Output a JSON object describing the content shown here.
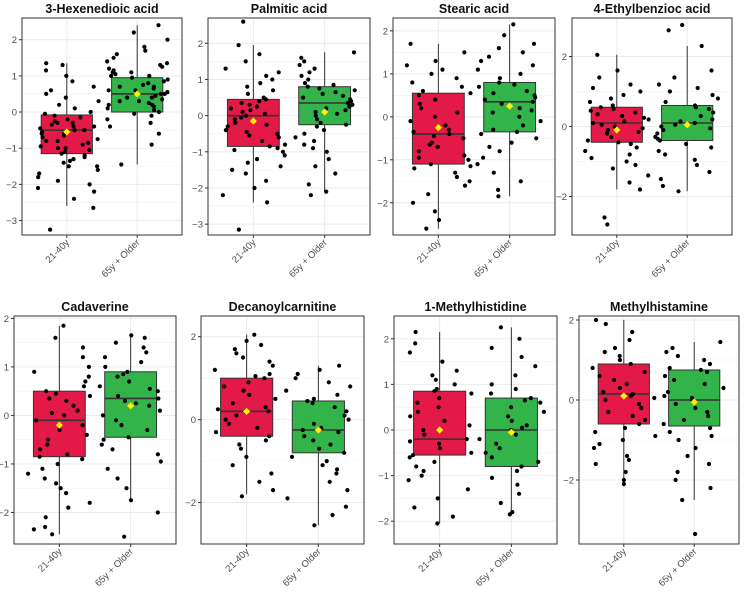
{
  "figure": {
    "colors": {
      "young": "#e31a47",
      "old": "#33b44a",
      "mean": "#ffee00",
      "point": "#000000",
      "grid": "#ebebeb"
    }
  },
  "chart_data": [
    {
      "type": "box",
      "title": "3-Hexenedioic acid",
      "categories": [
        "21-40y",
        "65y + Older"
      ],
      "yticks": [
        -3,
        -2,
        -1,
        0,
        1,
        2
      ],
      "ylim": [
        -3.4,
        2.6
      ],
      "groups": [
        {
          "name": "21-40y",
          "q1": -1.15,
          "median": -0.5,
          "q3": -0.08,
          "whisker_low": -2.6,
          "whisker_high": 1.35,
          "mean": -0.55,
          "points": [
            -3.25,
            -2.65,
            -2.4,
            -2.2,
            -2.1,
            -2.0,
            -1.9,
            -1.8,
            -1.7,
            -1.6,
            -1.5,
            -1.5,
            -1.4,
            -1.35,
            -1.3,
            -1.25,
            -1.2,
            -1.15,
            -1.1,
            -1.05,
            -1.0,
            -1.0,
            -0.95,
            -0.9,
            -0.85,
            -0.8,
            -0.8,
            -0.75,
            -0.7,
            -0.65,
            -0.6,
            -0.6,
            -0.55,
            -0.5,
            -0.5,
            -0.45,
            -0.4,
            -0.4,
            -0.35,
            -0.3,
            -0.3,
            -0.25,
            -0.2,
            -0.15,
            -0.1,
            -0.05,
            0.0,
            0.1,
            0.2,
            0.3,
            0.4,
            0.5,
            0.6,
            0.7,
            0.85,
            1.0,
            1.15,
            1.3,
            1.35
          ]
        },
        {
          "name": "65y + Older",
          "q1": 0.0,
          "median": 0.5,
          "q3": 0.95,
          "whisker_low": -1.45,
          "whisker_high": 2.4,
          "mean": 0.5,
          "points": [
            -1.45,
            -0.9,
            -0.6,
            -0.4,
            -0.3,
            -0.2,
            -0.1,
            -0.05,
            0.0,
            0.05,
            0.1,
            0.15,
            0.2,
            0.2,
            0.25,
            0.3,
            0.3,
            0.35,
            0.4,
            0.4,
            0.45,
            0.5,
            0.5,
            0.55,
            0.6,
            0.6,
            0.65,
            0.7,
            0.7,
            0.75,
            0.8,
            0.85,
            0.9,
            0.95,
            1.0,
            1.0,
            1.05,
            1.1,
            1.1,
            1.15,
            1.2,
            1.25,
            1.3,
            1.35,
            1.4,
            1.5,
            1.6,
            1.7,
            1.8,
            2.0,
            2.2,
            2.4
          ]
        }
      ]
    },
    {
      "type": "box",
      "title": "Palmitic acid",
      "categories": [
        "21-40y",
        "65y + Older"
      ],
      "yticks": [
        -3,
        -2,
        -1,
        0,
        1,
        2
      ],
      "ylim": [
        -3.3,
        2.7
      ],
      "groups": [
        {
          "name": "21-40y",
          "q1": -0.85,
          "median": 0.0,
          "q3": 0.45,
          "whisker_low": -2.4,
          "whisker_high": 1.95,
          "mean": -0.15,
          "points": [
            -3.15,
            -2.4,
            -2.2,
            -2.0,
            -1.8,
            -1.6,
            -1.5,
            -1.4,
            -1.3,
            -1.2,
            -1.1,
            -1.0,
            -0.95,
            -0.9,
            -0.85,
            -0.8,
            -0.7,
            -0.6,
            -0.55,
            -0.5,
            -0.45,
            -0.4,
            -0.3,
            -0.25,
            -0.2,
            -0.1,
            -0.05,
            0.0,
            0.05,
            0.1,
            0.15,
            0.2,
            0.25,
            0.3,
            0.35,
            0.4,
            0.45,
            0.5,
            0.6,
            0.7,
            0.8,
            0.9,
            1.0,
            1.1,
            1.2,
            1.3,
            1.5,
            1.7,
            1.95,
            2.6
          ]
        },
        {
          "name": "65y + Older",
          "q1": -0.25,
          "median": 0.35,
          "q3": 0.8,
          "whisker_low": -2.1,
          "whisker_high": 1.75,
          "mean": 0.1,
          "points": [
            -2.2,
            -2.1,
            -1.9,
            -1.6,
            -1.4,
            -1.2,
            -1.0,
            -0.9,
            -0.8,
            -0.7,
            -0.6,
            -0.5,
            -0.4,
            -0.3,
            -0.25,
            -0.2,
            -0.1,
            0.0,
            0.05,
            0.1,
            0.15,
            0.2,
            0.25,
            0.3,
            0.35,
            0.4,
            0.45,
            0.5,
            0.55,
            0.6,
            0.65,
            0.7,
            0.75,
            0.8,
            0.85,
            0.9,
            1.0,
            1.1,
            1.2,
            1.3,
            1.4,
            1.5,
            1.6,
            1.75
          ]
        }
      ]
    },
    {
      "type": "box",
      "title": "Stearic acid",
      "categories": [
        "21-40y",
        "65y + Older"
      ],
      "yticks": [
        -2,
        -1,
        0,
        1,
        2
      ],
      "ylim": [
        -2.75,
        2.3
      ],
      "groups": [
        {
          "name": "21-40y",
          "q1": -1.1,
          "median": -0.4,
          "q3": 0.55,
          "whisker_low": -2.6,
          "whisker_high": 1.7,
          "mean": -0.25,
          "points": [
            -2.6,
            -2.4,
            -2.2,
            -2.0,
            -1.8,
            -1.6,
            -1.5,
            -1.4,
            -1.3,
            -1.2,
            -1.15,
            -1.1,
            -1.0,
            -0.95,
            -0.9,
            -0.8,
            -0.7,
            -0.65,
            -0.6,
            -0.5,
            -0.45,
            -0.4,
            -0.35,
            -0.3,
            -0.2,
            -0.1,
            0.0,
            0.1,
            0.2,
            0.3,
            0.4,
            0.5,
            0.55,
            0.6,
            0.7,
            0.8,
            0.9,
            1.0,
            1.1,
            1.2,
            1.3,
            1.5,
            1.7
          ]
        },
        {
          "name": "65y + Older",
          "q1": -0.35,
          "median": 0.35,
          "q3": 0.8,
          "whisker_low": -1.85,
          "whisker_high": 2.15,
          "mean": 0.25,
          "points": [
            -1.85,
            -1.7,
            -1.5,
            -1.3,
            -1.1,
            -0.95,
            -0.8,
            -0.7,
            -0.6,
            -0.5,
            -0.4,
            -0.35,
            -0.3,
            -0.2,
            -0.1,
            0.0,
            0.1,
            0.15,
            0.2,
            0.3,
            0.35,
            0.4,
            0.45,
            0.5,
            0.55,
            0.6,
            0.7,
            0.75,
            0.8,
            0.9,
            1.0,
            1.1,
            1.2,
            1.3,
            1.4,
            1.5,
            1.6,
            1.7,
            1.9,
            2.15
          ]
        }
      ]
    },
    {
      "type": "box",
      "title": "4-Ethylbenzioc acid",
      "categories": [
        "21-40y",
        "65y + Older"
      ],
      "yticks": [
        -2,
        0,
        2
      ],
      "ylim": [
        -3.1,
        3.1
      ],
      "groups": [
        {
          "name": "21-40y",
          "q1": -0.45,
          "median": 0.1,
          "q3": 0.55,
          "whisker_low": -1.8,
          "whisker_high": 2.05,
          "mean": -0.1,
          "points": [
            -2.8,
            -2.6,
            -1.8,
            -1.6,
            -1.4,
            -1.2,
            -1.1,
            -1.0,
            -0.9,
            -0.8,
            -0.7,
            -0.6,
            -0.5,
            -0.45,
            -0.4,
            -0.3,
            -0.2,
            -0.15,
            -0.1,
            -0.05,
            0.0,
            0.05,
            0.1,
            0.15,
            0.2,
            0.25,
            0.3,
            0.35,
            0.4,
            0.45,
            0.5,
            0.55,
            0.6,
            0.7,
            0.8,
            0.9,
            1.0,
            1.1,
            1.2,
            1.4,
            1.6,
            2.05
          ]
        },
        {
          "name": "65y + Older",
          "q1": -0.4,
          "median": 0.1,
          "q3": 0.6,
          "whisker_low": -1.85,
          "whisker_high": 2.3,
          "mean": 0.05,
          "points": [
            -1.85,
            -1.7,
            -1.5,
            -1.3,
            -1.1,
            -0.95,
            -0.8,
            -0.7,
            -0.6,
            -0.5,
            -0.4,
            -0.35,
            -0.3,
            -0.2,
            -0.1,
            -0.05,
            0.0,
            0.05,
            0.1,
            0.15,
            0.2,
            0.3,
            0.4,
            0.5,
            0.55,
            0.6,
            0.7,
            0.8,
            0.9,
            1.0,
            1.1,
            1.2,
            1.4,
            1.6,
            2.3,
            2.75,
            2.9
          ]
        }
      ]
    },
    {
      "type": "box",
      "title": "Cadaverine",
      "categories": [
        "21-40y",
        "65y + Older"
      ],
      "yticks": [
        -2,
        -1,
        0,
        1,
        2
      ],
      "ylim": [
        -2.65,
        2.05
      ],
      "groups": [
        {
          "name": "21-40y",
          "q1": -0.85,
          "median": -0.1,
          "q3": 0.5,
          "whisker_low": -2.45,
          "whisker_high": 1.85,
          "mean": -0.2,
          "points": [
            -2.45,
            -2.35,
            -2.3,
            -2.1,
            -1.9,
            -1.8,
            -1.6,
            -1.5,
            -1.4,
            -1.3,
            -1.2,
            -1.1,
            -1.0,
            -0.9,
            -0.85,
            -0.8,
            -0.7,
            -0.6,
            -0.5,
            -0.4,
            -0.3,
            -0.2,
            -0.1,
            0.0,
            0.05,
            0.1,
            0.2,
            0.3,
            0.35,
            0.4,
            0.45,
            0.5,
            0.6,
            0.7,
            0.8,
            0.9,
            1.0,
            1.2,
            1.4,
            1.6,
            1.85
          ]
        },
        {
          "name": "65y + Older",
          "q1": -0.45,
          "median": 0.35,
          "q3": 0.9,
          "whisker_low": -1.75,
          "whisker_high": 1.65,
          "mean": 0.2,
          "points": [
            -2.5,
            -2.0,
            -1.75,
            -1.5,
            -1.3,
            -1.1,
            -0.95,
            -0.8,
            -0.7,
            -0.6,
            -0.5,
            -0.45,
            -0.3,
            -0.2,
            -0.1,
            0.0,
            0.1,
            0.2,
            0.25,
            0.3,
            0.35,
            0.4,
            0.5,
            0.55,
            0.6,
            0.7,
            0.8,
            0.85,
            0.9,
            1.0,
            1.1,
            1.2,
            1.3,
            1.4,
            1.5,
            1.6,
            1.65
          ]
        }
      ]
    },
    {
      "type": "box",
      "title": "Decanoylcarnitine",
      "categories": [
        "21-40y",
        "65y + Older"
      ],
      "yticks": [
        -2,
        0,
        2
      ],
      "ylim": [
        -3.0,
        2.5
      ],
      "groups": [
        {
          "name": "21-40y",
          "q1": -0.4,
          "median": 0.2,
          "q3": 1.0,
          "whisker_low": -1.8,
          "whisker_high": 2.05,
          "mean": 0.2,
          "points": [
            -1.85,
            -1.7,
            -1.5,
            -1.3,
            -1.1,
            -0.9,
            -0.7,
            -0.6,
            -0.5,
            -0.4,
            -0.3,
            -0.2,
            -0.1,
            0.0,
            0.1,
            0.2,
            0.25,
            0.3,
            0.4,
            0.5,
            0.6,
            0.7,
            0.8,
            0.9,
            1.0,
            1.05,
            1.1,
            1.2,
            1.3,
            1.4,
            1.5,
            1.6,
            1.7,
            1.8,
            1.9,
            2.05
          ]
        },
        {
          "name": "65y + Older",
          "q1": -0.8,
          "median": -0.25,
          "q3": 0.45,
          "whisker_low": -2.55,
          "whisker_high": 1.3,
          "mean": -0.25,
          "points": [
            -2.55,
            -2.3,
            -2.1,
            -1.9,
            -1.7,
            -1.5,
            -1.3,
            -1.2,
            -1.1,
            -1.0,
            -0.9,
            -0.8,
            -0.7,
            -0.6,
            -0.5,
            -0.4,
            -0.3,
            -0.25,
            -0.2,
            -0.1,
            0.0,
            0.1,
            0.2,
            0.3,
            0.4,
            0.45,
            0.5,
            0.6,
            0.7,
            0.8,
            0.9,
            1.0,
            1.1,
            1.2,
            1.3
          ]
        }
      ]
    },
    {
      "type": "box",
      "title": "1-Methylhistidine",
      "categories": [
        "21-40y",
        "65y + Older"
      ],
      "yticks": [
        -2,
        -1,
        0,
        1,
        2
      ],
      "ylim": [
        -2.5,
        2.5
      ],
      "groups": [
        {
          "name": "21-40y",
          "q1": -0.55,
          "median": -0.2,
          "q3": 0.85,
          "whisker_low": -2.05,
          "whisker_high": 2.15,
          "mean": 0.0,
          "points": [
            -2.05,
            -1.9,
            -1.7,
            -1.5,
            -1.3,
            -1.1,
            -1.0,
            -0.9,
            -0.8,
            -0.7,
            -0.6,
            -0.55,
            -0.5,
            -0.4,
            -0.3,
            -0.25,
            -0.2,
            -0.1,
            0.0,
            0.1,
            0.2,
            0.3,
            0.4,
            0.5,
            0.6,
            0.7,
            0.8,
            0.85,
            0.9,
            1.0,
            1.1,
            1.2,
            1.3,
            1.5,
            1.7,
            1.9,
            2.15
          ]
        },
        {
          "name": "65y + Older",
          "q1": -0.8,
          "median": 0.0,
          "q3": 0.7,
          "whisker_low": -1.8,
          "whisker_high": 2.25,
          "mean": -0.05,
          "points": [
            -1.85,
            -1.8,
            -1.6,
            -1.4,
            -1.2,
            -1.05,
            -0.9,
            -0.8,
            -0.7,
            -0.6,
            -0.5,
            -0.4,
            -0.3,
            -0.2,
            -0.1,
            0.0,
            0.05,
            0.1,
            0.2,
            0.3,
            0.4,
            0.5,
            0.6,
            0.65,
            0.7,
            0.8,
            0.9,
            1.0,
            1.2,
            1.4,
            1.6,
            1.8,
            2.0,
            2.25
          ]
        }
      ]
    },
    {
      "type": "box",
      "title": "Methylhistamine",
      "categories": [
        "21-40y",
        "65y + Older"
      ],
      "yticks": [
        -2,
        0,
        2
      ],
      "ylim": [
        -3.6,
        2.1
      ],
      "groups": [
        {
          "name": "21-40y",
          "q1": -0.6,
          "median": 0.15,
          "q3": 0.9,
          "whisker_low": -2.1,
          "whisker_high": 2.0,
          "mean": 0.1,
          "points": [
            -2.1,
            -2.0,
            -1.8,
            -1.6,
            -1.5,
            -1.4,
            -1.2,
            -1.1,
            -1.0,
            -0.9,
            -0.8,
            -0.7,
            -0.6,
            -0.5,
            -0.4,
            -0.3,
            -0.2,
            -0.1,
            0.0,
            0.05,
            0.1,
            0.15,
            0.2,
            0.3,
            0.4,
            0.5,
            0.6,
            0.7,
            0.8,
            0.9,
            1.0,
            1.1,
            1.2,
            1.3,
            1.5,
            1.7,
            1.9,
            2.0
          ]
        },
        {
          "name": "65y + Older",
          "q1": -0.65,
          "median": 0.0,
          "q3": 0.75,
          "whisker_low": -2.5,
          "whisker_high": 1.45,
          "mean": -0.05,
          "points": [
            -3.35,
            -2.5,
            -2.2,
            -2.0,
            -1.8,
            -1.6,
            -1.4,
            -1.2,
            -1.0,
            -0.9,
            -0.8,
            -0.7,
            -0.6,
            -0.5,
            -0.4,
            -0.3,
            -0.2,
            -0.1,
            0.0,
            0.05,
            0.1,
            0.2,
            0.3,
            0.4,
            0.5,
            0.6,
            0.7,
            0.75,
            0.8,
            0.9,
            1.0,
            1.1,
            1.2,
            1.3,
            1.45
          ]
        }
      ]
    }
  ]
}
